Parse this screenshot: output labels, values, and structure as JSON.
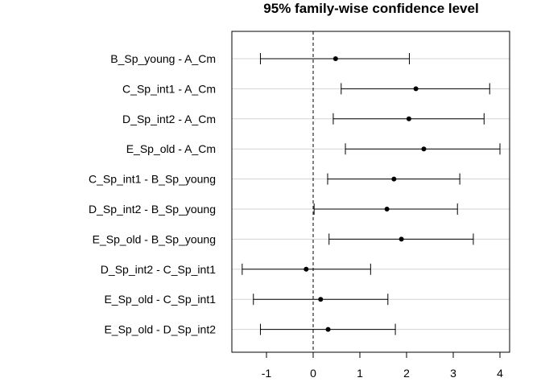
{
  "chart_data": {
    "type": "errorbar",
    "title": "95% family-wise confidence level",
    "xlabel": "",
    "ylabel": "",
    "xlim": [
      -1.6,
      4.2
    ],
    "x_ticks": [
      -1,
      0,
      1,
      2,
      3,
      4
    ],
    "x_tick_labels": [
      "-1",
      "0",
      "1",
      "2",
      "3",
      "4"
    ],
    "reference_line": 0,
    "grid": "horizontal",
    "comparisons": [
      {
        "label": "B_Sp_young - A_Cm",
        "estimate": 0.48,
        "lower": -1.13,
        "upper": 2.06
      },
      {
        "label": "C_Sp_int1 - A_Cm",
        "estimate": 2.2,
        "lower": 0.6,
        "upper": 3.78
      },
      {
        "label": "D_Sp_int2 - A_Cm",
        "estimate": 2.05,
        "lower": 0.43,
        "upper": 3.66
      },
      {
        "label": "E_Sp_old - A_Cm",
        "estimate": 2.37,
        "lower": 0.69,
        "upper": 4.0
      },
      {
        "label": "C_Sp_int1 - B_Sp_young",
        "estimate": 1.73,
        "lower": 0.31,
        "upper": 3.14
      },
      {
        "label": "D_Sp_int2 - B_Sp_young",
        "estimate": 1.58,
        "lower": 0.02,
        "upper": 3.09
      },
      {
        "label": "E_Sp_old - B_Sp_young",
        "estimate": 1.89,
        "lower": 0.34,
        "upper": 3.43
      },
      {
        "label": "D_Sp_int2 - C_Sp_int1",
        "estimate": -0.15,
        "lower": -1.52,
        "upper": 1.23
      },
      {
        "label": "E_Sp_old - C_Sp_int1",
        "estimate": 0.16,
        "lower": -1.28,
        "upper": 1.6
      },
      {
        "label": "E_Sp_old - D_Sp_int2",
        "estimate": 0.32,
        "lower": -1.13,
        "upper": 1.76
      }
    ]
  }
}
